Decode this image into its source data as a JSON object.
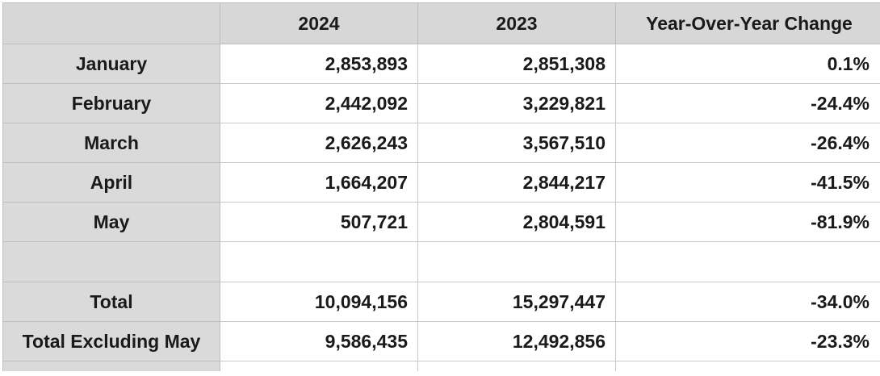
{
  "table": {
    "headers": [
      "",
      "2024",
      "2023",
      "Year-Over-Year Change"
    ],
    "rows": [
      {
        "label": "January",
        "y2024": "2,853,893",
        "y2023": "2,851,308",
        "change": "0.1%"
      },
      {
        "label": "February",
        "y2024": "2,442,092",
        "y2023": "3,229,821",
        "change": "-24.4%"
      },
      {
        "label": "March",
        "y2024": "2,626,243",
        "y2023": "3,567,510",
        "change": "-26.4%"
      },
      {
        "label": "April",
        "y2024": "1,664,207",
        "y2023": "2,844,217",
        "change": "-41.5%"
      },
      {
        "label": "May",
        "y2024": "507,721",
        "y2023": "2,804,591",
        "change": "-81.9%"
      },
      {
        "label": "",
        "y2024": "",
        "y2023": "",
        "change": ""
      },
      {
        "label": "Total",
        "y2024": "10,094,156",
        "y2023": "15,297,447",
        "change": "-34.0%"
      },
      {
        "label": "Total Excluding May",
        "y2024": "9,586,435",
        "y2023": "12,492,856",
        "change": "-23.3%"
      }
    ]
  },
  "colors": {
    "header_background": "#d7d7d7",
    "row_label_background": "#dadada",
    "cell_background": "#ffffff",
    "grid_line": "#c9c9c9",
    "text": "#1a1a1a"
  }
}
